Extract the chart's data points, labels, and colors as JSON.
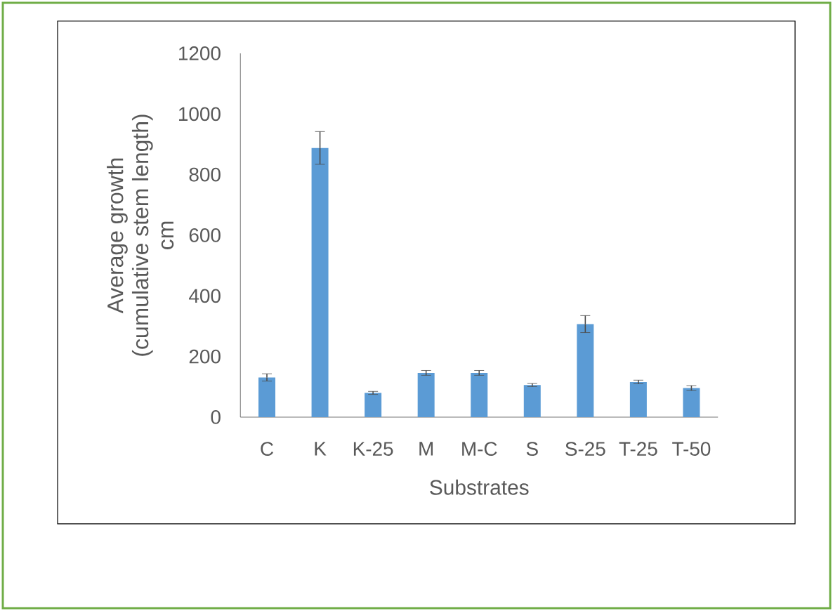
{
  "chart_data": {
    "type": "bar",
    "xlabel": "Substrates",
    "ylabel": "Average growth (cumulative stem length) cm",
    "categories": [
      "C",
      "K",
      "K-25",
      "M",
      "M-C",
      "S",
      "S-25",
      "T-25",
      "T-50"
    ],
    "values": [
      131,
      888,
      80,
      146,
      146,
      106,
      307,
      116,
      96
    ],
    "errors": [
      12,
      54,
      5,
      8,
      8,
      5,
      28,
      6,
      8
    ],
    "color": "#5b9bd5",
    "ylim": [
      0,
      1200
    ],
    "yticks": [
      0,
      200,
      400,
      600,
      800,
      1000,
      1200
    ],
    "grid": false
  }
}
